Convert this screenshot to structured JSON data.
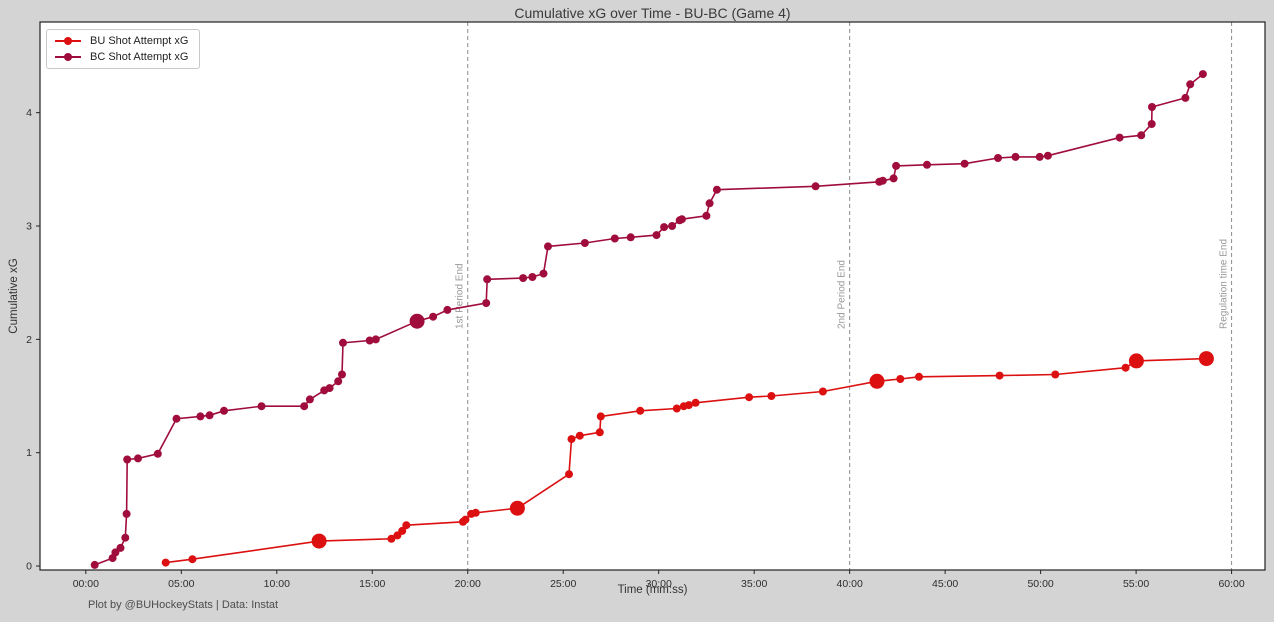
{
  "figure": {
    "caption": "Plot by @BUHockeyStats | Data: Instat"
  },
  "chart_data": {
    "type": "line",
    "title": "Cumulative xG over Time - BU-BC (Game 4)",
    "xlabel": "Time (mm:ss)",
    "ylabel": "Cumulative xG",
    "x_unit": "mm:ss",
    "xlim_seconds": [
      -144,
      3705
    ],
    "ylim": [
      -0.035,
      4.8
    ],
    "xticks": [
      "00:00",
      "05:00",
      "10:00",
      "15:00",
      "20:00",
      "25:00",
      "30:00",
      "35:00",
      "40:00",
      "45:00",
      "50:00",
      "55:00",
      "60:00"
    ],
    "yticks": [
      0,
      1,
      2,
      3,
      4
    ],
    "grid": false,
    "legend_position": "upper-left",
    "colors": {
      "figure_background": "#d4d4d4",
      "plot_background": "#ffffff",
      "period_line": "#8c8c8c",
      "period_label": "#999999"
    },
    "period_lines": [
      {
        "time": "20:00",
        "label": "1st Period End"
      },
      {
        "time": "40:00",
        "label": "2nd Period End"
      },
      {
        "time": "60:00",
        "label": "Regulation time End"
      }
    ],
    "marker_note": "points flagged 1 are drawn with a large marker",
    "series": [
      {
        "name": "BU Shot Attempt xG",
        "color": "#dc1010",
        "points": [
          [
            "04:11",
            0.03
          ],
          [
            "05:35",
            0.06
          ],
          [
            "12:13",
            0.22,
            1
          ],
          [
            "16:00",
            0.24
          ],
          [
            "16:19",
            0.27
          ],
          [
            "16:34",
            0.31
          ],
          [
            "16:47",
            0.36
          ],
          [
            "19:45",
            0.39
          ],
          [
            "19:53",
            0.41
          ],
          [
            "20:11",
            0.46
          ],
          [
            "20:25",
            0.47
          ],
          [
            "22:36",
            0.51,
            1
          ],
          [
            "25:18",
            0.81
          ],
          [
            "25:26",
            1.12
          ],
          [
            "25:52",
            1.15
          ],
          [
            "26:55",
            1.18
          ],
          [
            "26:58",
            1.32
          ],
          [
            "29:02",
            1.37
          ],
          [
            "30:57",
            1.39
          ],
          [
            "31:19",
            1.41
          ],
          [
            "31:35",
            1.42
          ],
          [
            "31:56",
            1.44
          ],
          [
            "34:44",
            1.49
          ],
          [
            "35:54",
            1.5
          ],
          [
            "38:36",
            1.54
          ],
          [
            "41:26",
            1.63,
            1
          ],
          [
            "42:39",
            1.65
          ],
          [
            "43:38",
            1.67
          ],
          [
            "47:51",
            1.68
          ],
          [
            "50:46",
            1.69
          ],
          [
            "54:27",
            1.75
          ],
          [
            "55:01",
            1.81,
            1
          ],
          [
            "58:41",
            1.83,
            1
          ]
        ]
      },
      {
        "name": "BC Shot Attempt xG",
        "color": "#a00d3c",
        "points": [
          [
            "00:28",
            0.01
          ],
          [
            "01:24",
            0.07
          ],
          [
            "01:33",
            0.12
          ],
          [
            "01:49",
            0.16
          ],
          [
            "02:04",
            0.25
          ],
          [
            "02:08",
            0.46
          ],
          [
            "02:10",
            0.94
          ],
          [
            "02:44",
            0.95
          ],
          [
            "03:46",
            0.99
          ],
          [
            "04:45",
            1.3
          ],
          [
            "06:00",
            1.32
          ],
          [
            "06:29",
            1.33
          ],
          [
            "07:14",
            1.37
          ],
          [
            "09:12",
            1.41
          ],
          [
            "11:26",
            1.41
          ],
          [
            "11:44",
            1.47
          ],
          [
            "12:29",
            1.55
          ],
          [
            "12:46",
            1.57
          ],
          [
            "13:13",
            1.63
          ],
          [
            "13:25",
            1.69
          ],
          [
            "13:28",
            1.97
          ],
          [
            "14:52",
            1.99
          ],
          [
            "15:11",
            2.0
          ],
          [
            "17:21",
            2.16,
            1
          ],
          [
            "18:11",
            2.2
          ],
          [
            "18:56",
            2.26
          ],
          [
            "20:58",
            2.32
          ],
          [
            "21:01",
            2.53
          ],
          [
            "22:54",
            2.54
          ],
          [
            "23:23",
            2.55
          ],
          [
            "23:58",
            2.58
          ],
          [
            "24:12",
            2.82
          ],
          [
            "26:08",
            2.85
          ],
          [
            "27:42",
            2.89
          ],
          [
            "28:32",
            2.9
          ],
          [
            "29:53",
            2.92
          ],
          [
            "30:17",
            2.99
          ],
          [
            "30:42",
            3.0
          ],
          [
            "31:06",
            3.05
          ],
          [
            "31:13",
            3.06
          ],
          [
            "32:30",
            3.09
          ],
          [
            "32:40",
            3.2
          ],
          [
            "33:03",
            3.32
          ],
          [
            "38:13",
            3.35
          ],
          [
            "41:33",
            3.39
          ],
          [
            "41:44",
            3.4
          ],
          [
            "42:18",
            3.42
          ],
          [
            "42:26",
            3.53
          ],
          [
            "44:03",
            3.54
          ],
          [
            "46:01",
            3.55
          ],
          [
            "47:46",
            3.6
          ],
          [
            "48:41",
            3.61
          ],
          [
            "49:57",
            3.61
          ],
          [
            "50:23",
            3.62
          ],
          [
            "54:08",
            3.78
          ],
          [
            "55:16",
            3.8
          ],
          [
            "55:49",
            3.9
          ],
          [
            "55:50",
            4.05
          ],
          [
            "57:35",
            4.13
          ],
          [
            "57:50",
            4.25
          ],
          [
            "58:30",
            4.34
          ]
        ]
      }
    ]
  }
}
